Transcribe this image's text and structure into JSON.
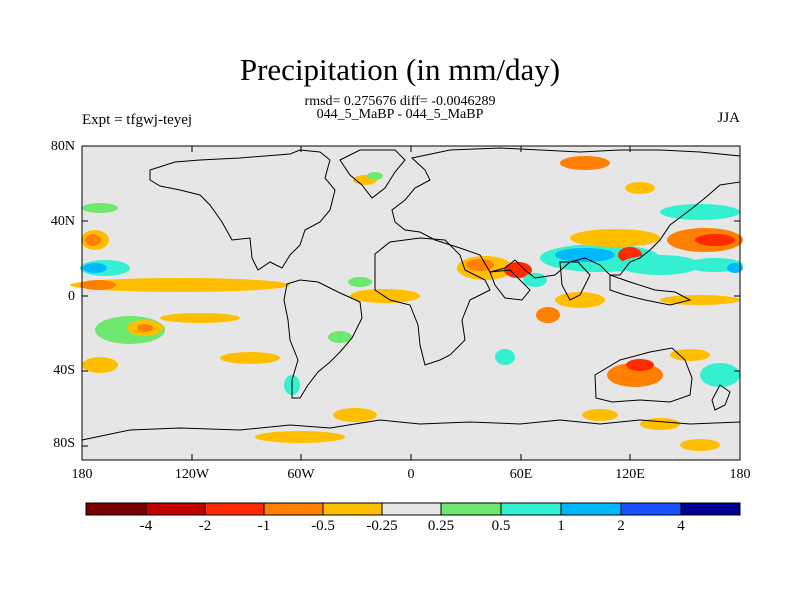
{
  "title": "Precipitation (in mm/day)",
  "stats_line": "rmsd= 0.275676 diff= -0.0046289",
  "case_line": "044_5_MaBP - 044_5_MaBP",
  "left_label": "Expt = tfgwj-teyej",
  "right_label": "JJA",
  "lat_ticks": [
    "80N",
    "40N",
    "0",
    "40S",
    "80S"
  ],
  "lon_ticks": [
    "180",
    "120W",
    "60W",
    "0",
    "60E",
    "120E",
    "180"
  ],
  "colorbar_labels": [
    "-4",
    "-2",
    "-1",
    "-0.5",
    "-0.25",
    "0.25",
    "0.5",
    "1",
    "2",
    "4"
  ],
  "colorbar_colors": [
    "#7a0000",
    "#c20000",
    "#ff2b00",
    "#ff7f00",
    "#ffbf00",
    "#e6e6e6",
    "#6fe86f",
    "#33f0d0",
    "#00b8ff",
    "#1a50ff",
    "#000090"
  ],
  "map_background": "#e6e6e6"
}
